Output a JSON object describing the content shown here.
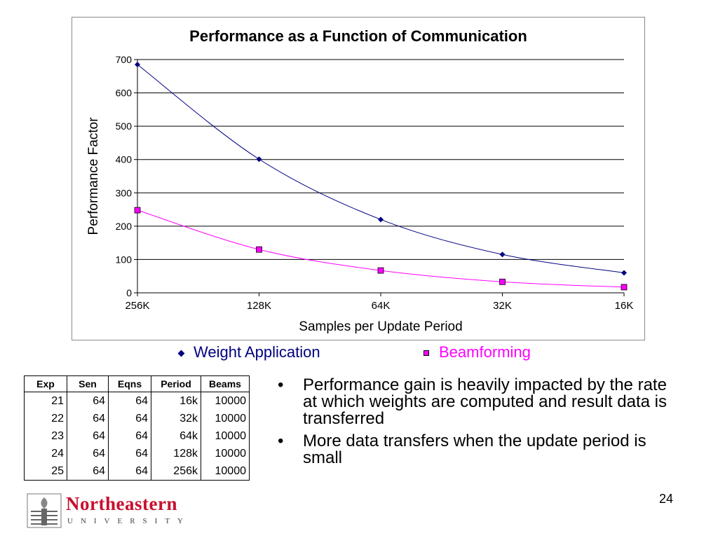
{
  "chart_data": {
    "type": "line",
    "title": "Performance as a Function of Communication",
    "xlabel": "Samples per Update Period",
    "ylabel": "Performance Factor",
    "categories": [
      "256K",
      "128K",
      "64K",
      "32K",
      "16K"
    ],
    "ylim": [
      0,
      700
    ],
    "yticks": [
      0,
      100,
      200,
      300,
      400,
      500,
      600,
      700
    ],
    "grid": "horizontal",
    "legend_position": "bottom",
    "series": [
      {
        "name": "Weight Application",
        "values": [
          685,
          401,
          220,
          115,
          60
        ],
        "color": "#000080",
        "marker": "diamond"
      },
      {
        "name": "Beamforming",
        "values": [
          248,
          130,
          67,
          33,
          17
        ],
        "color": "#ff00ff",
        "marker": "square"
      }
    ]
  },
  "table": {
    "headers": [
      "Exp",
      "Sen",
      "Eqns",
      "Period",
      "Beams"
    ],
    "rows": [
      [
        "21",
        "64",
        "64",
        "16k",
        "10000"
      ],
      [
        "22",
        "64",
        "64",
        "32k",
        "10000"
      ],
      [
        "23",
        "64",
        "64",
        "64k",
        "10000"
      ],
      [
        "24",
        "64",
        "64",
        "128k",
        "10000"
      ],
      [
        "25",
        "64",
        "64",
        "256k",
        "10000"
      ]
    ]
  },
  "bullets": {
    "marker": "•",
    "items": [
      "Performance gain is heavily impacted by the rate at which weights are computed and result data is transferred",
      "More data transfers when the update period is small"
    ]
  },
  "footer": {
    "page_number": "24",
    "logo_text": "Northeastern",
    "logo_subtext": "UNIVERSITY"
  }
}
